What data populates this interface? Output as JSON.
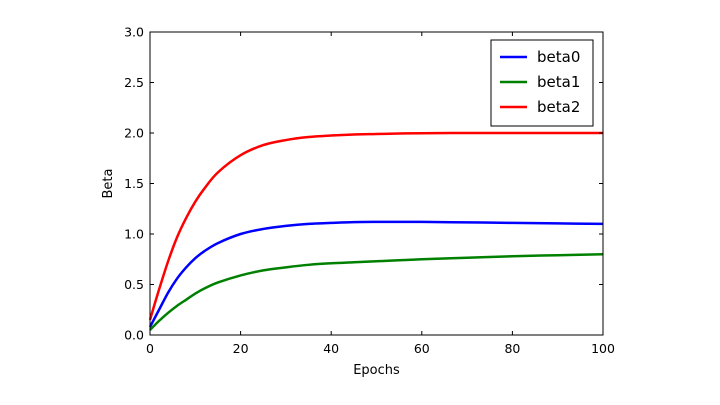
{
  "chart_data": {
    "type": "line",
    "xlabel": "Epochs",
    "ylabel": "Beta",
    "xlim": [
      0,
      100
    ],
    "ylim": [
      0.0,
      3.0
    ],
    "xticks": [
      "0",
      "20",
      "40",
      "60",
      "80",
      "100"
    ],
    "yticks": [
      "0.0",
      "0.5",
      "1.0",
      "1.5",
      "2.0",
      "2.5",
      "3.0"
    ],
    "grid": false,
    "legend_position": "top-right",
    "x": [
      0,
      2,
      4,
      6,
      8,
      10,
      12,
      15,
      20,
      25,
      30,
      35,
      40,
      45,
      50,
      55,
      60,
      70,
      80,
      90,
      100
    ],
    "series": [
      {
        "name": "beta0",
        "color": "#0000ff",
        "values": [
          0.08,
          0.25,
          0.42,
          0.56,
          0.67,
          0.76,
          0.83,
          0.91,
          1.0,
          1.05,
          1.08,
          1.1,
          1.11,
          1.118,
          1.12,
          1.12,
          1.12,
          1.115,
          1.11,
          1.105,
          1.1
        ]
      },
      {
        "name": "beta1",
        "color": "#008000",
        "values": [
          0.05,
          0.14,
          0.22,
          0.29,
          0.35,
          0.41,
          0.46,
          0.52,
          0.59,
          0.64,
          0.67,
          0.695,
          0.71,
          0.72,
          0.73,
          0.74,
          0.75,
          0.765,
          0.78,
          0.79,
          0.8
        ]
      },
      {
        "name": "beta2",
        "color": "#ff0000",
        "values": [
          0.15,
          0.45,
          0.73,
          0.97,
          1.16,
          1.32,
          1.45,
          1.61,
          1.78,
          1.88,
          1.93,
          1.96,
          1.975,
          1.985,
          1.99,
          1.995,
          1.998,
          2.0,
          2.0,
          2.0,
          2.0
        ]
      }
    ]
  }
}
